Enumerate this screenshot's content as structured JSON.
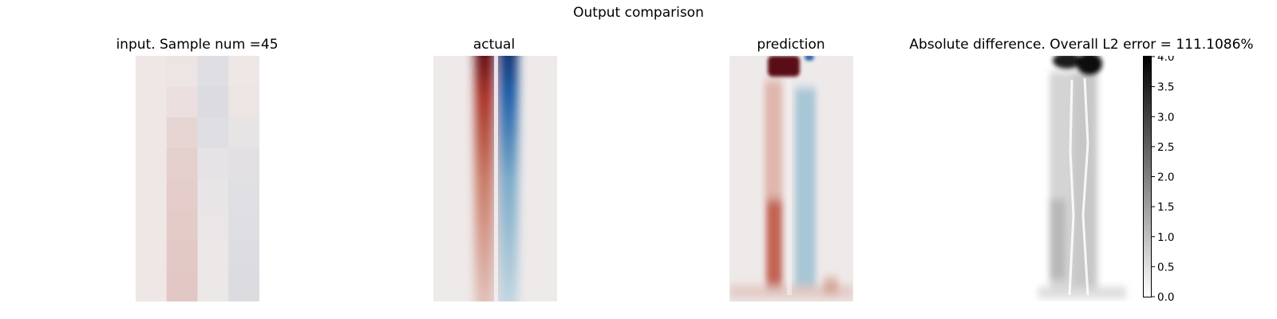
{
  "figure": {
    "suptitle": "Output comparison"
  },
  "colors": {
    "red": "#a83226",
    "blue": "#1f5fa8",
    "neutral": "#efeaea"
  },
  "chart_data": [
    {
      "type": "heatmap",
      "title": "input. Sample num =45",
      "colormap": "diverging red-white-blue",
      "grid": false,
      "shape": [
        8,
        4
      ],
      "values": [
        [
          0.02,
          0.03,
          -0.1,
          0.02
        ],
        [
          0.02,
          0.06,
          -0.12,
          0.03
        ],
        [
          0.02,
          0.12,
          -0.1,
          -0.05
        ],
        [
          0.02,
          0.15,
          -0.06,
          -0.08
        ],
        [
          0.02,
          0.17,
          -0.04,
          -0.09
        ],
        [
          0.02,
          0.18,
          -0.03,
          -0.1
        ],
        [
          0.02,
          0.19,
          -0.02,
          -0.11
        ],
        [
          0.02,
          0.2,
          -0.02,
          -0.12
        ]
      ]
    },
    {
      "type": "heatmap",
      "title": "actual",
      "colormap": "diverging red-white-blue",
      "grid": false,
      "description_values": "vertical red band left of center, vertical blue band right of center, strongest at top"
    },
    {
      "type": "heatmap",
      "title": "prediction",
      "colormap": "diverging red-white-blue",
      "grid": false,
      "description_values": "strong red blob at top, faint red column on left, faint blue column right of center"
    },
    {
      "type": "heatmap",
      "title": "Absolute difference. Overall L2 error = 111.1086%",
      "colormap": "greys",
      "grid": false,
      "colorbar": {
        "ticks": [
          "0.0",
          "0.5",
          "1.0",
          "1.5",
          "2.0",
          "2.5",
          "3.0",
          "3.5",
          "4.0"
        ],
        "range": [
          0,
          4
        ]
      }
    }
  ]
}
